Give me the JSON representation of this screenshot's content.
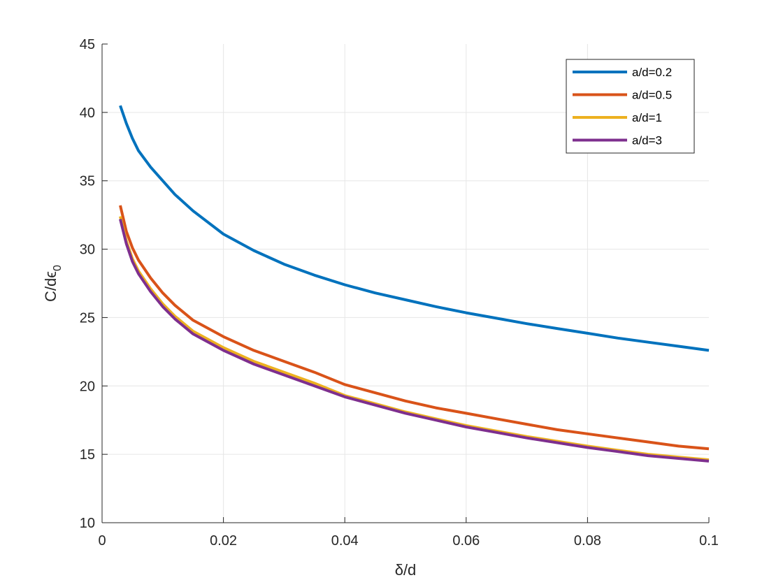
{
  "chart_data": {
    "type": "line",
    "xlabel": "δ/d",
    "ylabel_main": "C/dϵ",
    "ylabel_sub": "0",
    "xlim": [
      0,
      0.1
    ],
    "ylim": [
      10,
      45
    ],
    "grid": true,
    "legend_position": "top-right",
    "x_ticks": [
      0,
      0.02,
      0.04,
      0.06,
      0.08,
      0.1
    ],
    "x_tick_labels": [
      "0",
      "0.02",
      "0.04",
      "0.06",
      "0.08",
      "0.1"
    ],
    "y_ticks": [
      10,
      15,
      20,
      25,
      30,
      35,
      40,
      45
    ],
    "y_tick_labels": [
      "10",
      "15",
      "20",
      "25",
      "30",
      "35",
      "40",
      "45"
    ],
    "x": [
      0.003,
      0.004,
      0.005,
      0.006,
      0.008,
      0.01,
      0.012,
      0.015,
      0.02,
      0.025,
      0.03,
      0.035,
      0.04,
      0.045,
      0.05,
      0.055,
      0.06,
      0.065,
      0.07,
      0.075,
      0.08,
      0.085,
      0.09,
      0.095,
      0.1
    ],
    "series": [
      {
        "name": "a/d=0.2",
        "color": "#0072BD",
        "values": [
          40.5,
          39.2,
          38.1,
          37.2,
          36.0,
          35.0,
          34.0,
          32.8,
          31.1,
          29.9,
          28.9,
          28.1,
          27.4,
          26.8,
          26.3,
          25.8,
          25.35,
          24.95,
          24.55,
          24.2,
          23.85,
          23.5,
          23.2,
          22.9,
          22.6
        ]
      },
      {
        "name": "a/d=0.5",
        "color": "#D95319",
        "values": [
          33.2,
          31.3,
          30.1,
          29.2,
          27.9,
          26.8,
          25.9,
          24.8,
          23.6,
          22.6,
          21.8,
          21.0,
          20.1,
          19.5,
          18.9,
          18.4,
          18.0,
          17.6,
          17.2,
          16.8,
          16.5,
          16.2,
          15.9,
          15.6,
          15.4
        ]
      },
      {
        "name": "a/d=1",
        "color": "#EDB120",
        "values": [
          32.4,
          30.6,
          29.3,
          28.4,
          27.1,
          26.0,
          25.1,
          24.0,
          22.8,
          21.8,
          21.0,
          20.2,
          19.3,
          18.7,
          18.1,
          17.6,
          17.1,
          16.7,
          16.3,
          15.95,
          15.6,
          15.3,
          15.0,
          14.8,
          14.6
        ]
      },
      {
        "name": "a/d=3",
        "color": "#7E2F8E",
        "values": [
          32.2,
          30.4,
          29.1,
          28.2,
          26.9,
          25.8,
          24.9,
          23.8,
          22.6,
          21.6,
          20.8,
          20.0,
          19.2,
          18.6,
          18.0,
          17.5,
          17.0,
          16.6,
          16.2,
          15.85,
          15.5,
          15.2,
          14.9,
          14.7,
          14.5
        ]
      }
    ]
  }
}
